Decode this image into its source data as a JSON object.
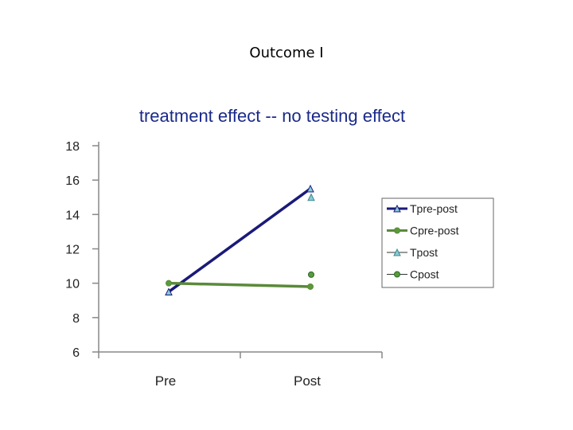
{
  "page": {
    "title": "Outcome I"
  },
  "chart_data": {
    "type": "line",
    "title": "treatment effect -- no testing effect",
    "categories": [
      "Pre",
      "Post"
    ],
    "ylim": [
      6,
      18
    ],
    "yticks": [
      6,
      8,
      10,
      12,
      14,
      16,
      18
    ],
    "series": [
      {
        "name": "Tpre-post",
        "type": "line",
        "marker": "triangle",
        "color": "#1a1a7a",
        "values": [
          9.5,
          15.5
        ]
      },
      {
        "name": "Cpre-post",
        "type": "line",
        "marker": "circle",
        "color": "#5a8a3a",
        "values": [
          10.0,
          9.8
        ]
      },
      {
        "name": "Tpost",
        "type": "scatter",
        "marker": "triangle",
        "color": "#3a8a8a",
        "values": [
          null,
          15.0
        ]
      },
      {
        "name": "Cpost",
        "type": "scatter",
        "marker": "circle",
        "color": "#2a6a2a",
        "values": [
          null,
          10.5
        ]
      }
    ]
  }
}
